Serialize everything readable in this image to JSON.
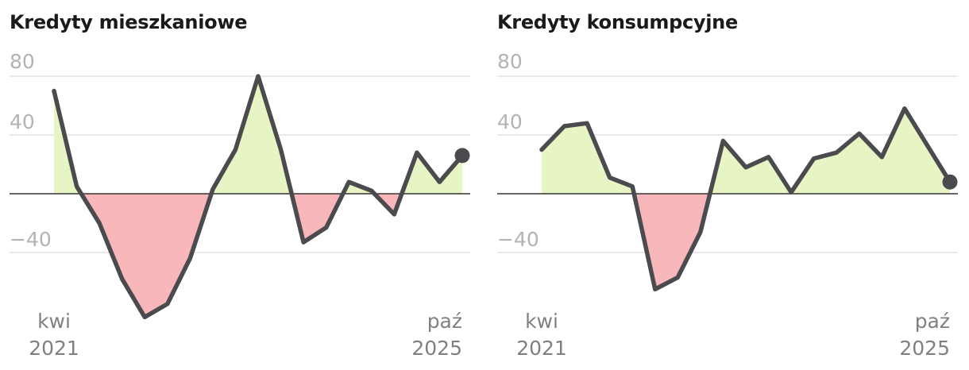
{
  "chart_data": [
    {
      "type": "area",
      "title": "Kredyty mieszkaniowe",
      "ylim": [
        -80,
        80
      ],
      "yticks": [
        80,
        40,
        -40
      ],
      "ytick_labels": [
        "80",
        "40",
        "−40"
      ],
      "x_start": {
        "month": "kwi",
        "year": "2021"
      },
      "x_end": {
        "month": "paź",
        "year": "2025"
      },
      "fill_colors": {
        "positive": "#e6f5c3",
        "negative": "#f7b7bb"
      },
      "line_color": "#4b4b4f",
      "grid": true,
      "values": [
        70,
        5,
        -20,
        -58,
        -84,
        -75,
        -44,
        3,
        30,
        80,
        30,
        -33,
        -23,
        8,
        2,
        -14,
        28,
        8,
        26
      ]
    },
    {
      "type": "area",
      "title": "Kredyty konsumpcyjne",
      "ylim": [
        -80,
        80
      ],
      "yticks": [
        80,
        40,
        -40
      ],
      "ytick_labels": [
        "80",
        "40",
        "−40"
      ],
      "x_start": {
        "month": "kwi",
        "year": "2021"
      },
      "x_end": {
        "month": "paź",
        "year": "2025"
      },
      "fill_colors": {
        "positive": "#e6f5c3",
        "negative": "#f7b7bb"
      },
      "line_color": "#4b4b4f",
      "grid": true,
      "values": [
        30,
        46,
        48,
        11,
        5,
        -65,
        -57,
        -26,
        36,
        18,
        25,
        1,
        24,
        28,
        41,
        25,
        58,
        33,
        8
      ]
    }
  ]
}
